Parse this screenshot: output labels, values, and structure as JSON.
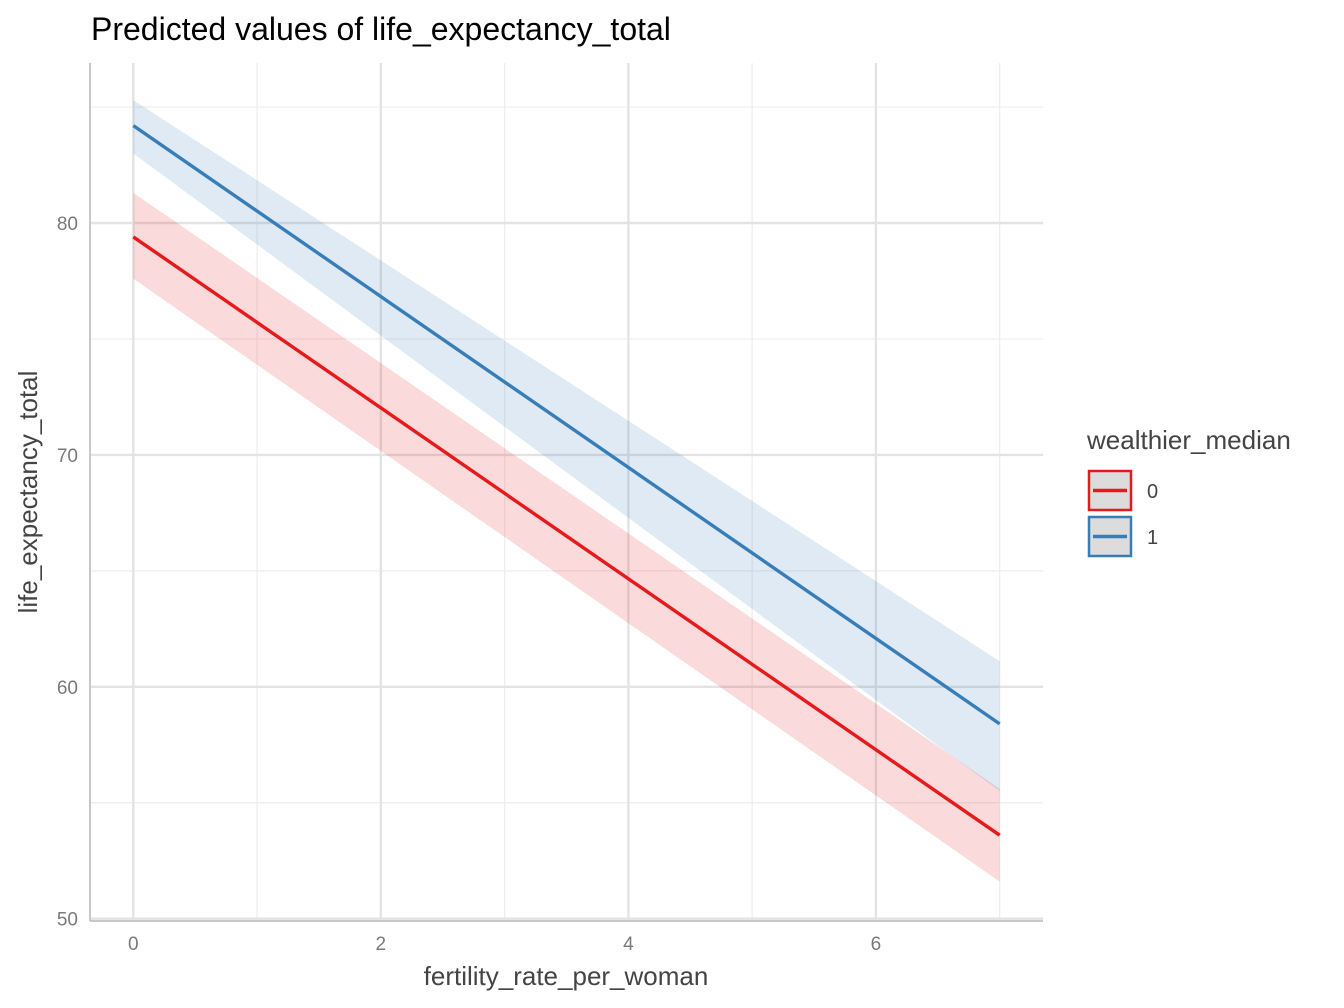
{
  "chart_data": {
    "type": "line",
    "title": "Predicted values of life_expectancy_total",
    "xlabel": "fertility_rate_per_woman",
    "ylabel": "life_expectancy_total",
    "xlim": [
      -0.35,
      7.35
    ],
    "ylim": [
      49.9,
      86.9
    ],
    "x_ticks": [
      0,
      2,
      4,
      6
    ],
    "x_tick_labels": [
      "0",
      "2",
      "4",
      "6"
    ],
    "y_ticks": [
      50,
      60,
      70,
      80
    ],
    "y_tick_labels": [
      "50",
      "60",
      "70",
      "80"
    ],
    "x_minor": [
      1,
      3,
      5,
      7
    ],
    "y_minor": [
      55,
      65,
      75,
      85
    ],
    "grid": true,
    "legend": {
      "title": "wealthier_median",
      "position": "right",
      "entries": [
        "0",
        "1"
      ]
    },
    "series": [
      {
        "name": "0",
        "color": "#e41a1c",
        "x": [
          0,
          7
        ],
        "y": [
          79.4,
          53.6
        ],
        "lower": [
          77.6,
          51.6
        ],
        "upper": [
          81.3,
          55.6
        ]
      },
      {
        "name": "1",
        "color": "#377eb8",
        "x": [
          0,
          7
        ],
        "y": [
          84.2,
          58.4
        ],
        "lower": [
          83.0,
          55.5
        ],
        "upper": [
          85.3,
          61.1
        ]
      }
    ]
  }
}
